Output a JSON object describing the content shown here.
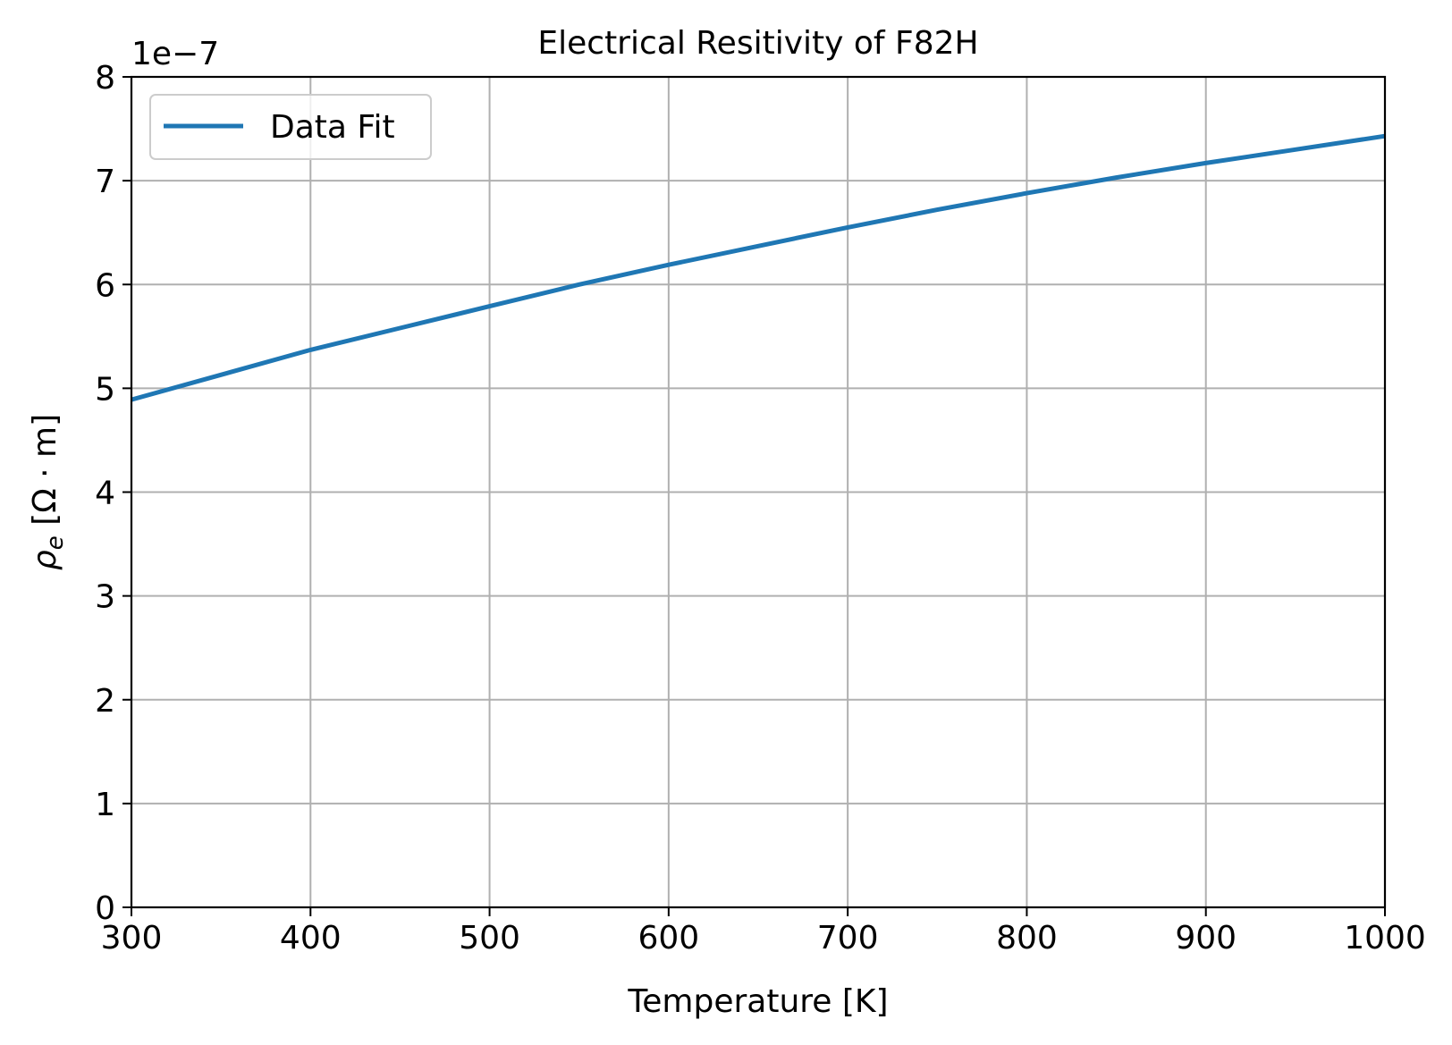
{
  "chart_data": {
    "type": "line",
    "title": "Electrical Resitivity of F82H",
    "xlabel": "Temperature [K]",
    "ylabel_symbol": "ρ",
    "ylabel_subscript": "e",
    "ylabel_unit": " [Ω · m]",
    "y_offset_label": "1e−7",
    "xlim": [
      300,
      1000
    ],
    "ylim": [
      0,
      8
    ],
    "x_ticks": [
      300,
      400,
      500,
      600,
      700,
      800,
      900,
      1000
    ],
    "x_tick_labels": [
      "300",
      "400",
      "500",
      "600",
      "700",
      "800",
      "900",
      "1000"
    ],
    "y_ticks": [
      0,
      1,
      2,
      3,
      4,
      5,
      6,
      7,
      8
    ],
    "y_tick_labels": [
      "0",
      "1",
      "2",
      "3",
      "4",
      "5",
      "6",
      "7",
      "8"
    ],
    "grid": true,
    "legend_position": "top-left",
    "series": [
      {
        "name": "Data Fit",
        "color": "#1f77b4",
        "x": [
          300,
          350,
          400,
          450,
          500,
          550,
          600,
          650,
          700,
          750,
          800,
          850,
          900,
          950,
          1000
        ],
        "y": [
          4.89,
          5.13,
          5.37,
          5.58,
          5.79,
          6.0,
          6.19,
          6.37,
          6.55,
          6.72,
          6.88,
          7.03,
          7.17,
          7.3,
          7.43
        ]
      }
    ]
  }
}
